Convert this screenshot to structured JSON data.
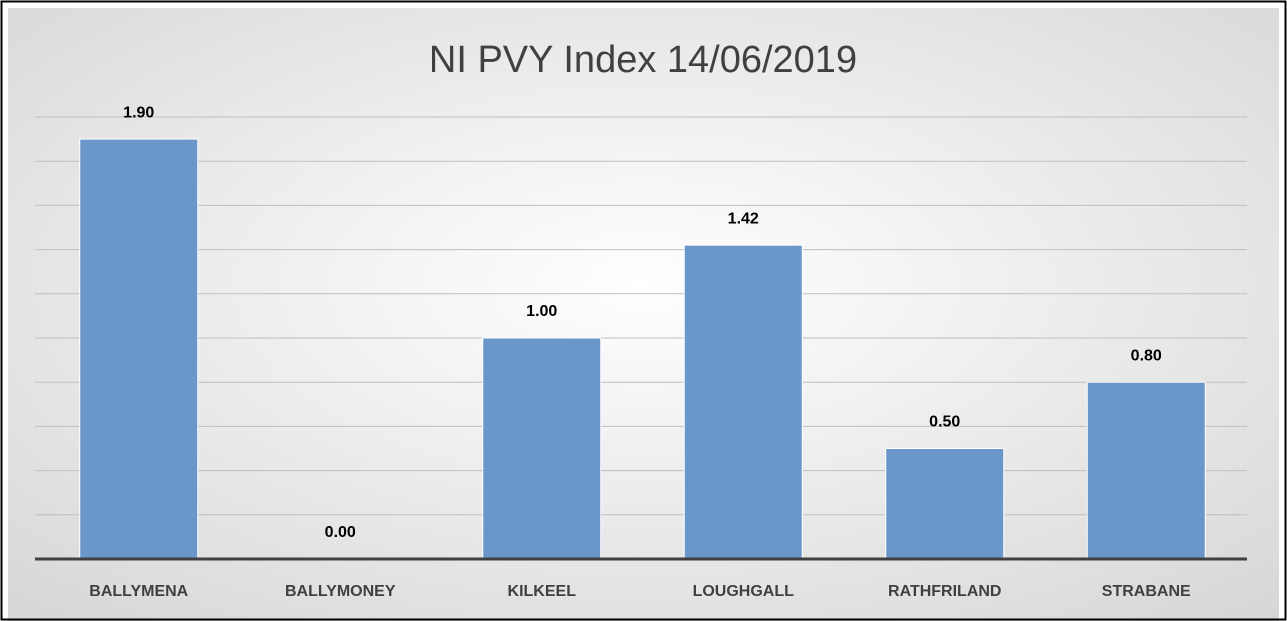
{
  "chart_data": {
    "type": "bar",
    "title": "NI PVY Index 14/06/2019",
    "categories": [
      "BALLYMENA",
      "BALLYMONEY",
      "KILKEEL",
      "LOUGHGALL",
      "RATHFRILAND",
      "STRABANE"
    ],
    "values": [
      1.9,
      0,
      1,
      1.42,
      0.5,
      0.8
    ],
    "value_labels": [
      "1.90",
      "0.00",
      "1.00",
      "1.42",
      "0.50",
      "0.80"
    ],
    "color": "#6a96c9",
    "ylim": [
      0,
      2
    ],
    "yticks": [
      0,
      0.2,
      0.4,
      0.6,
      0.8,
      1,
      1.2,
      1.4,
      1.6,
      1.8,
      2
    ],
    "grid": true
  }
}
